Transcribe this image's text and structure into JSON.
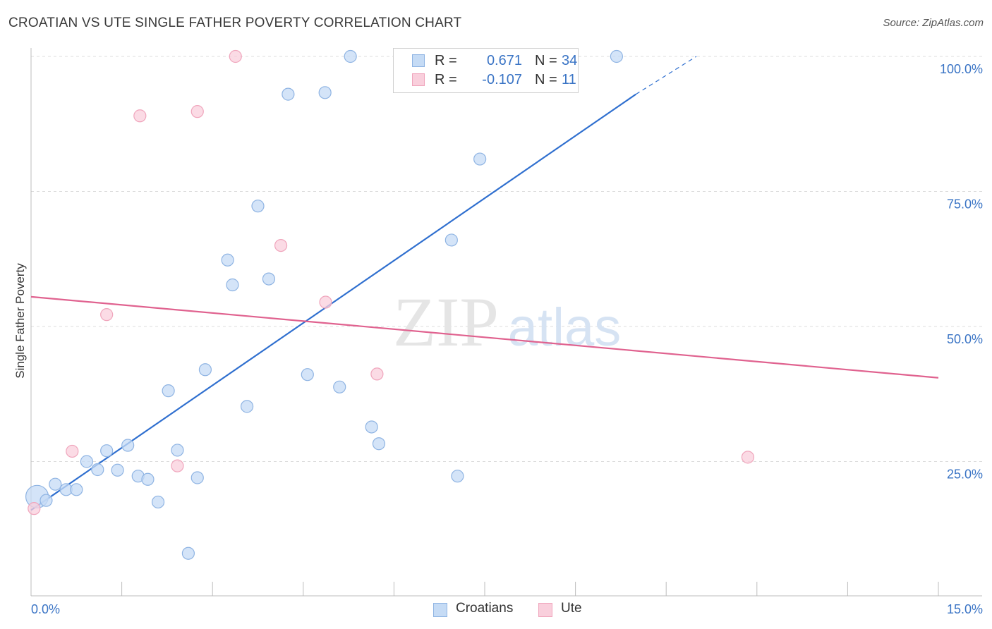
{
  "header": {
    "title": "CROATIAN VS UTE SINGLE FATHER POVERTY CORRELATION CHART",
    "source": "Source: ZipAtlas.com"
  },
  "watermark": {
    "zip": "ZIP",
    "atlas": "atlas"
  },
  "legend": {
    "rows": [
      {
        "r_label": "R =",
        "r_value": "0.671",
        "n_label": "N =",
        "n_value": "34",
        "color": "#a8c8f0"
      },
      {
        "r_label": "R =",
        "r_value": "-0.107",
        "n_label": "N =",
        "n_value": "11",
        "color": "#f6b6c8"
      }
    ]
  },
  "bottom_legend": {
    "croatians": "Croatians",
    "ute": "Ute"
  },
  "colors": {
    "croatians_fill": "#c5dbf5",
    "croatians_stroke": "#8fb4e3",
    "croatians_line": "#2f6fcf",
    "ute_fill": "#f9cfdc",
    "ute_stroke": "#f0a5bc",
    "ute_line": "#e0628f",
    "tick_label": "#3a74c5",
    "grid": "#dcdcdc"
  },
  "chart_data": {
    "type": "scatter",
    "title": "CROATIAN VS UTE SINGLE FATHER POVERTY CORRELATION CHART",
    "xlabel": "",
    "ylabel": "Single Father Poverty",
    "xlim": [
      0,
      15
    ],
    "ylim": [
      0,
      100
    ],
    "x_tick_labels": [
      {
        "value": 0,
        "label": "0.0%"
      },
      {
        "value": 15,
        "label": "15.0%"
      }
    ],
    "y_tick_labels": [
      {
        "value": 25,
        "label": "25.0%"
      },
      {
        "value": 50,
        "label": "50.0%"
      },
      {
        "value": 75,
        "label": "75.0%"
      },
      {
        "value": 100,
        "label": "100.0%"
      }
    ],
    "grid": true,
    "legend_position": "bottom",
    "series": [
      {
        "name": "Croatians",
        "points": [
          {
            "x": 0.1,
            "y": 18.5,
            "big": true
          },
          {
            "x": 0.25,
            "y": 17.8
          },
          {
            "x": 0.4,
            "y": 20.8
          },
          {
            "x": 0.58,
            "y": 19.8
          },
          {
            "x": 0.75,
            "y": 19.8
          },
          {
            "x": 0.92,
            "y": 25.0
          },
          {
            "x": 1.1,
            "y": 23.5
          },
          {
            "x": 1.25,
            "y": 27.0
          },
          {
            "x": 1.43,
            "y": 23.4
          },
          {
            "x": 1.6,
            "y": 28.0
          },
          {
            "x": 1.77,
            "y": 22.3
          },
          {
            "x": 1.93,
            "y": 21.7
          },
          {
            "x": 2.1,
            "y": 17.5
          },
          {
            "x": 2.27,
            "y": 38.1
          },
          {
            "x": 2.42,
            "y": 27.1
          },
          {
            "x": 2.6,
            "y": 8.0
          },
          {
            "x": 2.75,
            "y": 22.0
          },
          {
            "x": 2.88,
            "y": 42.0
          },
          {
            "x": 3.25,
            "y": 62.3
          },
          {
            "x": 3.33,
            "y": 57.7
          },
          {
            "x": 3.57,
            "y": 35.2
          },
          {
            "x": 3.75,
            "y": 72.3
          },
          {
            "x": 3.93,
            "y": 58.8
          },
          {
            "x": 4.25,
            "y": 93.0
          },
          {
            "x": 4.57,
            "y": 41.1
          },
          {
            "x": 4.86,
            "y": 93.3
          },
          {
            "x": 5.1,
            "y": 38.8
          },
          {
            "x": 5.28,
            "y": 100.0
          },
          {
            "x": 5.63,
            "y": 31.4
          },
          {
            "x": 5.75,
            "y": 28.3
          },
          {
            "x": 6.95,
            "y": 66.0
          },
          {
            "x": 7.05,
            "y": 22.3
          },
          {
            "x": 7.42,
            "y": 81.0
          },
          {
            "x": 9.68,
            "y": 100.0
          }
        ],
        "trend": {
          "x0": 0,
          "y0": 16.0,
          "x1": 10.0,
          "y1": 93.0,
          "dash_to_x": 11.0,
          "dash_to_y": 100.0
        }
      },
      {
        "name": "Ute",
        "points": [
          {
            "x": 0.05,
            "y": 16.3
          },
          {
            "x": 0.68,
            "y": 26.9
          },
          {
            "x": 1.25,
            "y": 52.2
          },
          {
            "x": 1.8,
            "y": 89.0
          },
          {
            "x": 2.42,
            "y": 24.2
          },
          {
            "x": 2.75,
            "y": 89.8
          },
          {
            "x": 3.38,
            "y": 100.0
          },
          {
            "x": 4.13,
            "y": 65.0
          },
          {
            "x": 4.87,
            "y": 54.5
          },
          {
            "x": 5.72,
            "y": 41.2
          },
          {
            "x": 11.85,
            "y": 25.8
          }
        ],
        "trend": {
          "x0": 0,
          "y0": 55.5,
          "x1": 15,
          "y1": 40.5
        }
      }
    ]
  }
}
